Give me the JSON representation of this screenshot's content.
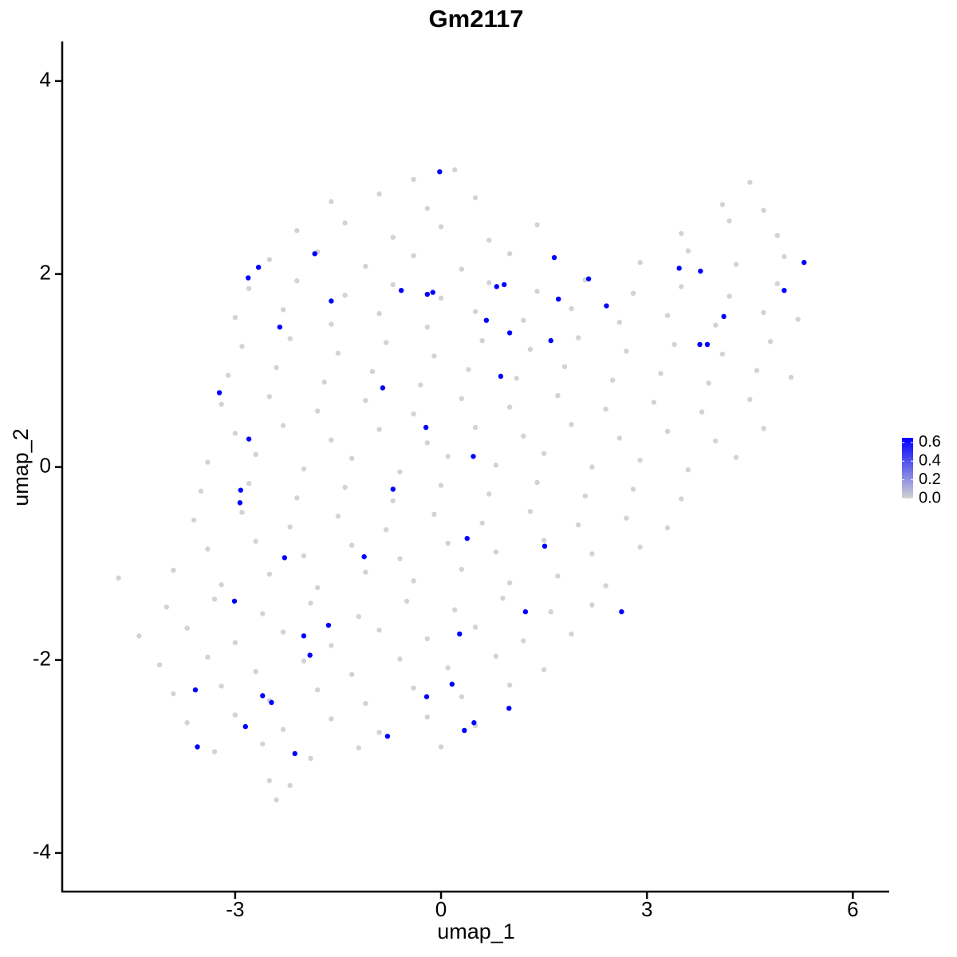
{
  "chart_data": {
    "type": "scatter",
    "title": "Gm2117",
    "x_label": "umap_1",
    "y_label": "umap_2",
    "xlim": [
      -5.52,
      6.53
    ],
    "ylim": [
      -4.4,
      4.41
    ],
    "xticks": [
      -3,
      0,
      3,
      6
    ],
    "yticks": [
      -4,
      -2,
      0,
      2,
      4
    ],
    "colorbar": {
      "lim": [
        0,
        0.65
      ],
      "colors": [
        "#d3d3d3",
        "#0000ff"
      ],
      "ticks": [
        {
          "value": 0,
          "label": "0.0"
        },
        0.2,
        0.4,
        0.6
      ]
    },
    "groups": [
      {
        "expression": 0,
        "x": [
          -0.4,
          0.2,
          4.5,
          -1.6,
          -0.9,
          -0.2,
          0.5,
          4.1,
          4.7,
          -2.1,
          -1.4,
          -0.7,
          0.0,
          0.7,
          1.4,
          3.5,
          4.2,
          4.9,
          -2.5,
          -1.8,
          -1.1,
          -0.4,
          0.3,
          1.0,
          2.9,
          3.6,
          4.3,
          5.0,
          -2.8,
          -2.1,
          -1.4,
          -0.7,
          0.0,
          0.7,
          1.4,
          2.1,
          2.8,
          3.5,
          4.2,
          4.9,
          -3.0,
          -2.3,
          -1.6,
          -0.9,
          -0.2,
          0.5,
          1.2,
          1.9,
          2.6,
          3.3,
          4.0,
          4.7,
          5.2,
          -2.9,
          -2.2,
          -1.5,
          -0.8,
          -0.1,
          0.6,
          1.3,
          2.0,
          2.7,
          3.4,
          4.1,
          4.8,
          -3.1,
          -2.4,
          -1.7,
          -1.0,
          -0.3,
          0.4,
          1.1,
          1.8,
          2.5,
          3.2,
          3.9,
          4.6,
          5.1,
          -3.2,
          -2.5,
          -1.8,
          -1.1,
          -0.4,
          0.3,
          1.0,
          1.7,
          2.4,
          3.1,
          3.8,
          4.5,
          -3.0,
          -2.3,
          -1.6,
          -0.9,
          -0.2,
          0.5,
          1.2,
          1.9,
          2.6,
          3.3,
          4.0,
          4.7,
          -3.4,
          -2.7,
          -2.0,
          -1.3,
          -0.6,
          0.1,
          0.8,
          1.5,
          2.2,
          2.9,
          3.6,
          4.3,
          -3.5,
          -2.8,
          -2.1,
          -1.4,
          -0.7,
          0.0,
          0.7,
          1.4,
          2.1,
          2.8,
          3.5,
          -3.6,
          -2.9,
          -2.2,
          -1.5,
          -0.8,
          -0.1,
          0.6,
          1.3,
          2.0,
          2.7,
          3.3,
          -3.4,
          -2.7,
          -2.0,
          -1.3,
          -0.6,
          0.1,
          0.8,
          1.5,
          2.2,
          2.9,
          -4.7,
          -3.9,
          -3.2,
          -2.5,
          -1.8,
          -1.1,
          -0.4,
          0.3,
          1.0,
          1.7,
          2.4,
          -4.0,
          -3.3,
          -2.6,
          -1.9,
          -1.2,
          -0.5,
          0.2,
          0.9,
          1.6,
          2.2,
          -4.4,
          -3.7,
          -3.0,
          -2.3,
          -1.6,
          -0.9,
          -0.2,
          0.5,
          1.2,
          1.9,
          -4.1,
          -3.4,
          -2.7,
          -2.0,
          -1.3,
          -0.6,
          0.1,
          0.8,
          1.5,
          -3.9,
          -3.2,
          -2.5,
          -1.8,
          -1.1,
          -0.4,
          0.3,
          1.0,
          -3.7,
          -3.0,
          -2.3,
          -1.6,
          -0.9,
          -0.2,
          0.5,
          -3.3,
          -2.6,
          -1.9,
          -1.2,
          0.0,
          -2.5,
          -2.2,
          -2.4
        ],
        "y": [
          2.98,
          3.08,
          2.95,
          2.75,
          2.83,
          2.68,
          2.79,
          2.72,
          2.66,
          2.45,
          2.53,
          2.38,
          2.49,
          2.35,
          2.51,
          2.42,
          2.55,
          2.4,
          2.15,
          2.23,
          2.08,
          2.19,
          2.05,
          2.21,
          2.12,
          2.24,
          2.1,
          2.18,
          1.85,
          1.93,
          1.78,
          1.89,
          1.75,
          1.91,
          1.82,
          1.94,
          1.8,
          1.87,
          1.77,
          1.9,
          1.55,
          1.63,
          1.48,
          1.59,
          1.45,
          1.61,
          1.52,
          1.64,
          1.5,
          1.57,
          1.47,
          1.6,
          1.53,
          1.25,
          1.33,
          1.18,
          1.29,
          1.15,
          1.31,
          1.22,
          1.34,
          1.2,
          1.27,
          1.17,
          1.3,
          0.95,
          1.03,
          0.88,
          0.99,
          0.85,
          1.01,
          0.92,
          1.04,
          0.9,
          0.97,
          0.87,
          1.0,
          0.93,
          0.65,
          0.73,
          0.58,
          0.69,
          0.55,
          0.71,
          0.62,
          0.74,
          0.6,
          0.67,
          0.57,
          0.7,
          0.35,
          0.43,
          0.28,
          0.39,
          0.25,
          0.41,
          0.32,
          0.44,
          0.3,
          0.37,
          0.27,
          0.4,
          0.05,
          0.13,
          -0.02,
          0.09,
          -0.05,
          0.11,
          0.02,
          0.14,
          0,
          0.07,
          -0.03,
          0.1,
          -0.25,
          -0.17,
          -0.32,
          -0.21,
          -0.35,
          -0.19,
          -0.28,
          -0.16,
          -0.3,
          -0.23,
          -0.33,
          -0.55,
          -0.47,
          -0.62,
          -0.51,
          -0.65,
          -0.49,
          -0.58,
          -0.46,
          -0.6,
          -0.53,
          -0.63,
          -0.85,
          -0.77,
          -0.92,
          -0.81,
          -0.95,
          -0.79,
          -0.88,
          -0.76,
          -0.9,
          -0.83,
          -1.15,
          -1.07,
          -1.22,
          -1.11,
          -1.25,
          -1.09,
          -1.18,
          -1.06,
          -1.2,
          -1.13,
          -1.23,
          -1.45,
          -1.37,
          -1.52,
          -1.41,
          -1.55,
          -1.39,
          -1.48,
          -1.36,
          -1.5,
          -1.43,
          -1.75,
          -1.67,
          -1.82,
          -1.71,
          -1.85,
          -1.69,
          -1.78,
          -1.66,
          -1.8,
          -1.73,
          -2.05,
          -1.97,
          -2.12,
          -2.01,
          -2.15,
          -1.99,
          -2.08,
          -1.96,
          -2.1,
          -2.35,
          -2.27,
          -2.42,
          -2.31,
          -2.45,
          -2.29,
          -2.38,
          -2.26,
          -2.65,
          -2.57,
          -2.72,
          -2.61,
          -2.75,
          -2.59,
          -2.68,
          -2.95,
          -2.87,
          -3.02,
          -2.91,
          -2.9,
          -3.25,
          -3.3,
          -3.45
        ]
      },
      {
        "expression": 0.65,
        "x": [
          -0.02,
          -1.84,
          -2.66,
          -2.81,
          -1.6,
          -2.35,
          -0.58,
          -0.2,
          -0.12,
          0.81,
          0.92,
          1.65,
          2.15,
          1.71,
          2.41,
          0.66,
          1.0,
          1.6,
          0.87,
          -0.85,
          -0.22,
          0.47,
          -3.23,
          -2.8,
          -2.92,
          -2.93,
          -0.7,
          0.38,
          1.51,
          -1.12,
          -2.28,
          -3.01,
          1.23,
          2.63,
          -1.64,
          -2.0,
          0.27,
          -1.91,
          0.16,
          -0.21,
          -3.58,
          -2.6,
          -2.47,
          0.99,
          0.48,
          0.34,
          -2.85,
          -0.78,
          -3.55,
          -2.13,
          3.47,
          3.78,
          5.29,
          5.0,
          4.12,
          3.77,
          3.88
        ],
        "y": [
          3.06,
          2.21,
          2.07,
          1.96,
          1.72,
          1.45,
          1.83,
          1.79,
          1.81,
          1.87,
          1.89,
          2.17,
          1.95,
          1.74,
          1.67,
          1.52,
          1.39,
          1.31,
          0.94,
          0.82,
          0.41,
          0.11,
          0.77,
          0.29,
          -0.24,
          -0.37,
          -0.23,
          -0.74,
          -0.82,
          -0.93,
          -0.94,
          -1.39,
          -1.5,
          -1.5,
          -1.64,
          -1.75,
          -1.73,
          -1.95,
          -2.25,
          -2.38,
          -2.31,
          -2.37,
          -2.44,
          -2.5,
          -2.65,
          -2.73,
          -2.69,
          -2.79,
          -2.9,
          -2.97,
          2.06,
          2.03,
          2.12,
          1.83,
          1.56,
          1.27,
          1.27
        ]
      }
    ]
  }
}
